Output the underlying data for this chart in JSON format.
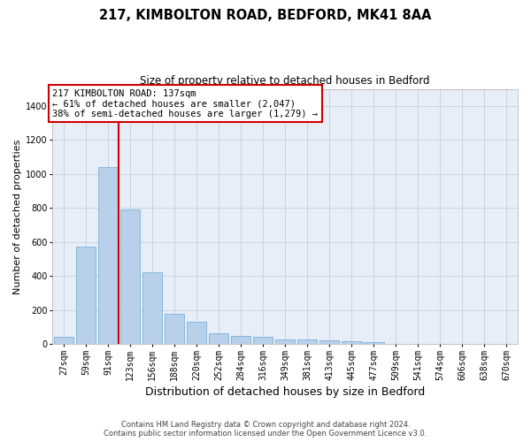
{
  "title": "217, KIMBOLTON ROAD, BEDFORD, MK41 8AA",
  "subtitle": "Size of property relative to detached houses in Bedford",
  "xlabel": "Distribution of detached houses by size in Bedford",
  "ylabel": "Number of detached properties",
  "footnote": "Contains HM Land Registry data © Crown copyright and database right 2024.\nContains public sector information licensed under the Open Government Licence v3.0.",
  "categories": [
    "27sqm",
    "59sqm",
    "91sqm",
    "123sqm",
    "156sqm",
    "188sqm",
    "220sqm",
    "252sqm",
    "284sqm",
    "316sqm",
    "349sqm",
    "381sqm",
    "413sqm",
    "445sqm",
    "477sqm",
    "509sqm",
    "541sqm",
    "574sqm",
    "606sqm",
    "638sqm",
    "670sqm"
  ],
  "values": [
    45,
    575,
    1040,
    790,
    420,
    180,
    130,
    65,
    50,
    45,
    28,
    28,
    20,
    15,
    10,
    0,
    0,
    0,
    0,
    0,
    0
  ],
  "bar_color": "#b8d0ea",
  "bar_edge_color": "#6aaad4",
  "grid_color": "#c8d4e4",
  "background_color": "#e8eef8",
  "vline_color": "#cc0000",
  "vline_x": 2.5,
  "annotation_text": "217 KIMBOLTON ROAD: 137sqm\n← 61% of detached houses are smaller (2,047)\n38% of semi-detached houses are larger (1,279) →",
  "annotation_box_edgecolor": "#cc0000",
  "ylim": [
    0,
    1500
  ],
  "yticks": [
    0,
    200,
    400,
    600,
    800,
    1000,
    1200,
    1400
  ],
  "title_fontsize": 10.5,
  "subtitle_fontsize": 8.5,
  "ylabel_fontsize": 8,
  "xlabel_fontsize": 9,
  "tick_fontsize": 7,
  "annot_fontsize": 7.5
}
